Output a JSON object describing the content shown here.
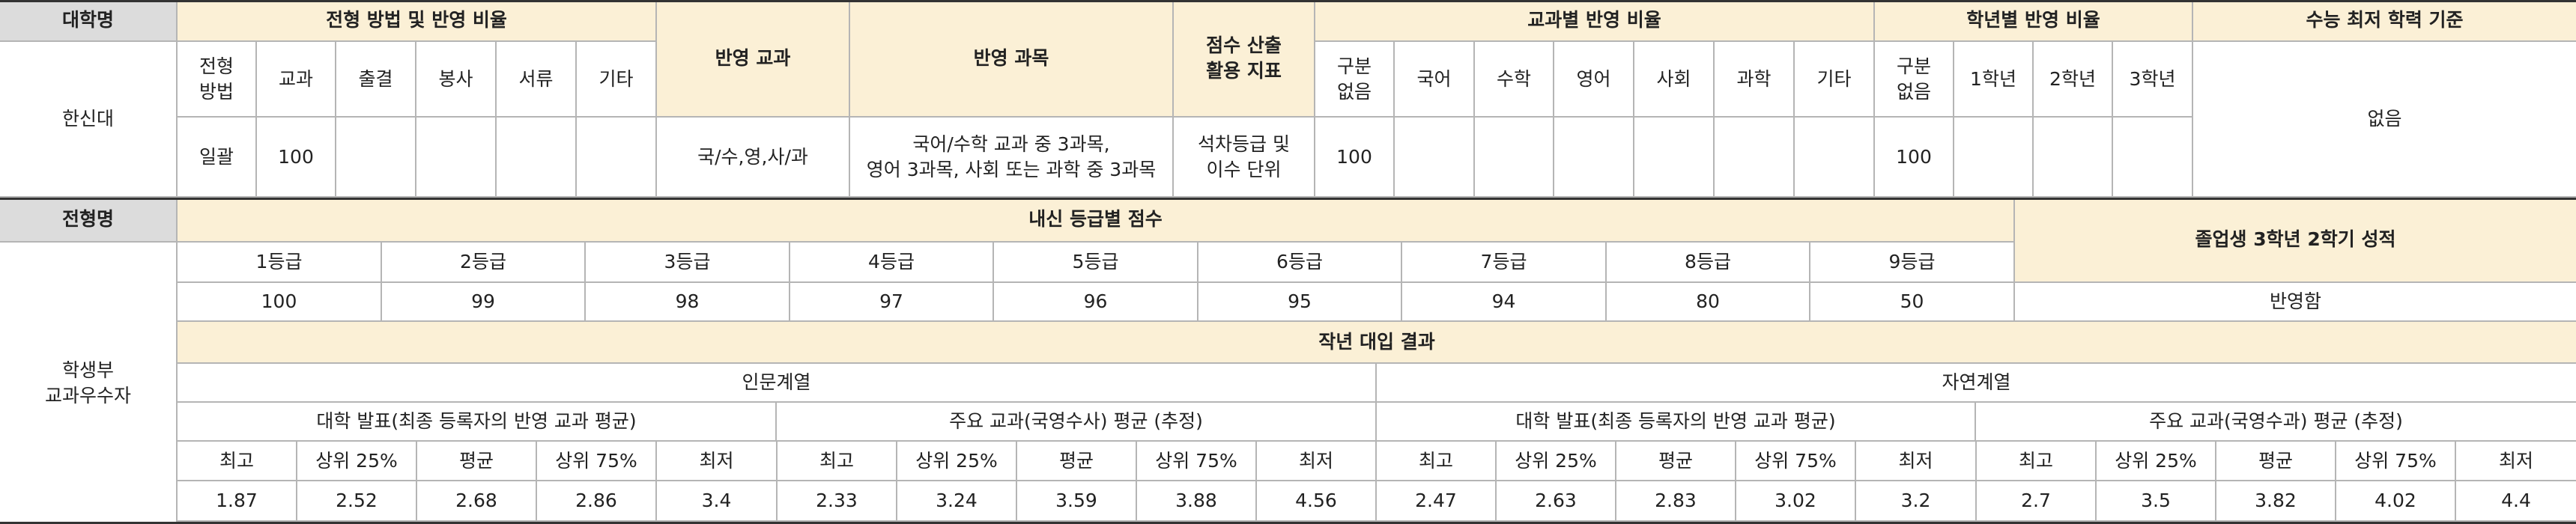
{
  "top": {
    "h_university": "대학명",
    "h_method_ratio": "전형 방법 및 반영 비율",
    "h_subjects_reflected": "반영 교과",
    "h_courses_reflected": "반영 과목",
    "h_score_indicator": "점수 산출\n활용 지표",
    "h_subject_ratio": "교과별 반영 비율",
    "h_grade_ratio": "학년별 반영 비율",
    "h_csat_min": "수능 최저 학력 기준",
    "sub_method": "전형\n방법",
    "sub_subject": "교과",
    "sub_attendance": "출결",
    "sub_volunteer": "봉사",
    "sub_documents": "서류",
    "sub_other": "기타",
    "sub_sr_none": "구분\n없음",
    "sub_korean": "국어",
    "sub_math": "수학",
    "sub_english": "영어",
    "sub_social": "사회",
    "sub_science": "과학",
    "sub_sr_other": "기타",
    "sub_gr_none": "구분\n없음",
    "sub_year1": "1학년",
    "sub_year2": "2학년",
    "sub_year3": "3학년",
    "university": "한신대",
    "v_method": "일괄",
    "v_subject": "100",
    "v_subjects_reflected": "국/수,영,사/과",
    "v_courses_reflected": "국어/수학 교과 중 3과목,\n영어 3과목, 사회 또는 과학 중 3과목",
    "v_score_indicator": "석차등급 및\n이수 단위",
    "v_sr_none": "100",
    "v_gr_none": "100",
    "v_csat_min": "없음"
  },
  "bottom": {
    "h_admission_name": "전형명",
    "h_grade_scores": "내신 등급별 점수",
    "h_graduate": "졸업생 3학년 2학기 성적",
    "admission_name": "학생부\n교과우수자",
    "grades": [
      "1등급",
      "2등급",
      "3등급",
      "4등급",
      "5등급",
      "6등급",
      "7등급",
      "8등급",
      "9등급"
    ],
    "grade_scores": [
      "100",
      "99",
      "98",
      "97",
      "96",
      "95",
      "94",
      "80",
      "50"
    ],
    "graduate_value": "반영함",
    "h_last_year": "작년 대입 결과",
    "humanities": "인문계열",
    "natural": "자연계열",
    "sub_univ_humanities": "대학 발표(최종 등록자의 반영 교과 평균)",
    "sub_main_humanities": "주요 교과(국영수사) 평균 (추정)",
    "sub_univ_natural": "대학 발표(최종 등록자의 반영 교과 평균)",
    "sub_main_natural": "주요 교과(국영수과) 평균 (추정)",
    "stat_labels": [
      "최고",
      "상위 25%",
      "평균",
      "상위 75%",
      "최저"
    ],
    "results": [
      [
        "1.87",
        "2.52",
        "2.68",
        "2.86",
        "3.4"
      ],
      [
        "2.33",
        "3.24",
        "3.59",
        "3.88",
        "4.56"
      ],
      [
        "2.47",
        "2.63",
        "2.83",
        "3.02",
        "3.2"
      ],
      [
        "2.7",
        "3.5",
        "3.82",
        "4.02",
        "4.4"
      ]
    ]
  }
}
